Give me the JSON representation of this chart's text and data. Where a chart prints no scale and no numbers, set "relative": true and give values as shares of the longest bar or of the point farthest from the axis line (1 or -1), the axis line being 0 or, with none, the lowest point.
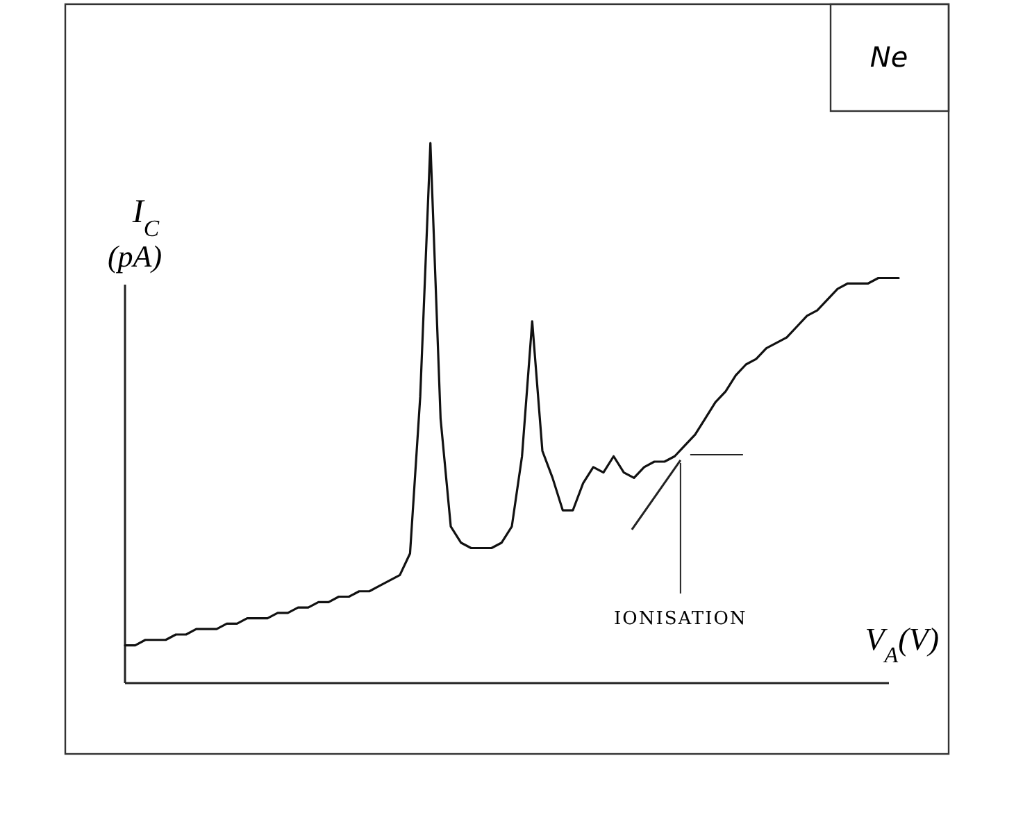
{
  "chart_data": {
    "type": "line",
    "relative": true,
    "xlabel": "V$_{A}$(V)",
    "ylabel": "I$_{C}$ (pA)",
    "marker": "none",
    "line_style": "solid",
    "categories": [
      null,
      null,
      null,
      null,
      null,
      null,
      null,
      null,
      null,
      null,
      null,
      null,
      null,
      null,
      null,
      null,
      null,
      null,
      null,
      null,
      null,
      null,
      null,
      null,
      null,
      null,
      null,
      null,
      null,
      null,
      null,
      null,
      null,
      null,
      null,
      null,
      null,
      null,
      null,
      null,
      null,
      null,
      null,
      null,
      null,
      null,
      null,
      null,
      null,
      null,
      null,
      null,
      null,
      null,
      null,
      null,
      null,
      null,
      null,
      null,
      null,
      null,
      null,
      null,
      null,
      null,
      null,
      null,
      null,
      null,
      null,
      null,
      null,
      null,
      null,
      null,
      null
    ],
    "series": [
      {
        "color": "#111111",
        "values": [
          0.07,
          0.07,
          0.08,
          0.08,
          0.08,
          0.09,
          0.09,
          0.1,
          0.1,
          0.1,
          0.11,
          0.11,
          0.12,
          0.12,
          0.12,
          0.13,
          0.13,
          0.14,
          0.14,
          0.15,
          0.15,
          0.16,
          0.16,
          0.17,
          0.17,
          0.18,
          0.19,
          0.2,
          0.24,
          0.53,
          1,
          0.49,
          0.29,
          0.26,
          0.25,
          0.25,
          0.25,
          0.26,
          0.29,
          0.42,
          0.67,
          0.43,
          0.38,
          0.32,
          0.32,
          0.37,
          0.4,
          0.39,
          0.42,
          0.39,
          0.38,
          0.4,
          0.41,
          0.41,
          0.42,
          0.44,
          0.46,
          0.49,
          0.52,
          0.54,
          0.57,
          0.59,
          0.6,
          0.62,
          0.63,
          0.64,
          0.66,
          0.68,
          0.69,
          0.71,
          0.73,
          0.74,
          0.74,
          0.74,
          0.75,
          0.75,
          0.75
        ]
      }
    ],
    "annotations": [
      "Ne",
      "IONISATION"
    ]
  }
}
